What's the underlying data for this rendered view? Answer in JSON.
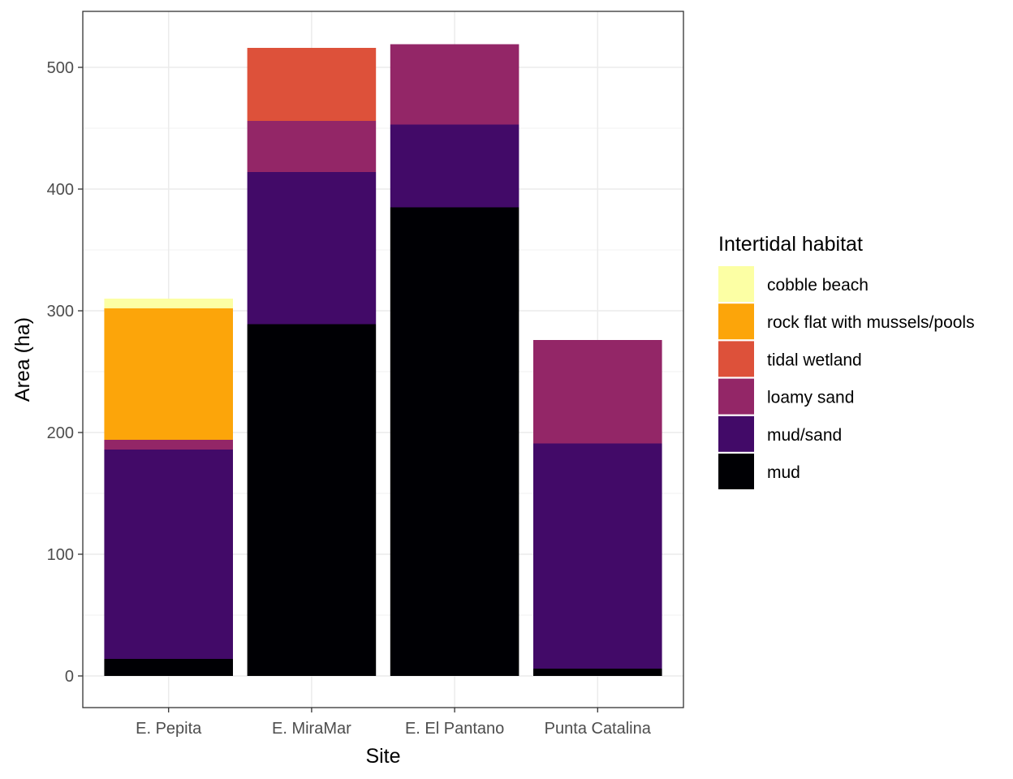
{
  "chart_data": {
    "type": "bar",
    "stacked": true,
    "categories": [
      "E. Pepita",
      "E. MiraMar",
      "E. El Pantano",
      "Punta Catalina"
    ],
    "series": [
      {
        "name": "mud",
        "color": "#000004",
        "values": [
          14,
          289,
          385,
          6
        ]
      },
      {
        "name": "mud/sand",
        "color": "#420a68",
        "values": [
          172,
          125,
          68,
          185
        ]
      },
      {
        "name": "loamy sand",
        "color": "#932667",
        "values": [
          8,
          42,
          66,
          85
        ]
      },
      {
        "name": "tidal wetland",
        "color": "#dd513a",
        "values": [
          0,
          60,
          0,
          0
        ]
      },
      {
        "name": "rock flat with mussels/pools",
        "color": "#fca50a",
        "values": [
          108,
          0,
          0,
          0
        ]
      },
      {
        "name": "cobble beach",
        "color": "#fcffa4",
        "values": [
          8,
          0,
          0,
          0
        ]
      }
    ],
    "xlabel": "Site",
    "ylabel": "Area (ha)",
    "ylim": [
      0,
      540
    ],
    "yticks": [
      0,
      100,
      200,
      300,
      400,
      500
    ],
    "grid": true,
    "legend": {
      "title": "Intertidal habitat",
      "position": "right",
      "order": [
        "cobble beach",
        "rock flat with mussels/pools",
        "tidal wetland",
        "loamy sand",
        "mud/sand",
        "mud"
      ]
    }
  }
}
